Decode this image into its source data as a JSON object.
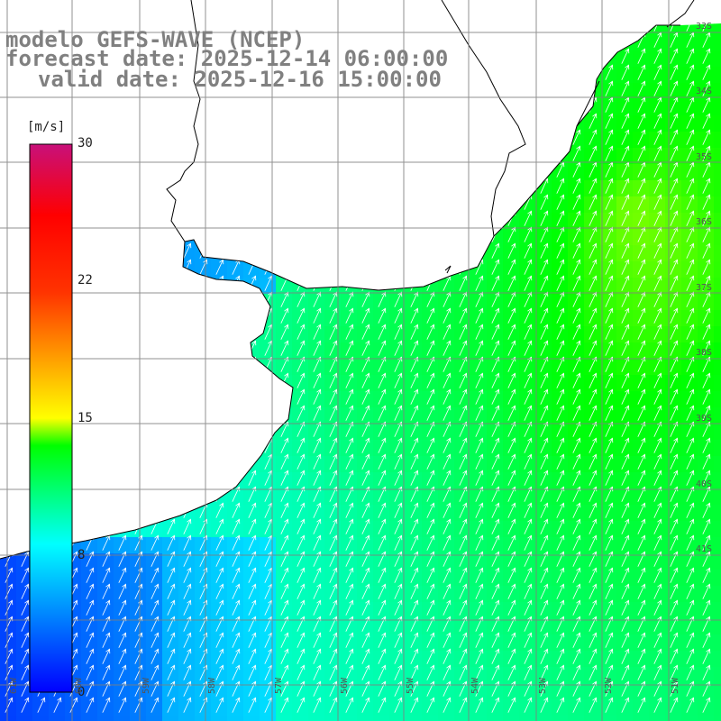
{
  "title": {
    "model": "modelo GEFS-WAVE (NCEP)",
    "forecast": "forecast date: 2025-12-14 06:00:00",
    "valid": "valid date: 2025-12-16 15:00:00"
  },
  "colorbar": {
    "unit": "[m/s]",
    "min": 0,
    "max": 30,
    "ticks": [
      "30",
      "22",
      "15",
      "8",
      "0"
    ],
    "stops": [
      "#0000ff",
      "#00ffff",
      "#00ff00",
      "#ffff00",
      "#ff0000",
      "#c8107a"
    ]
  },
  "axis_labels": {
    "lon": [
      "61W",
      "60W",
      "59W",
      "58W",
      "57W",
      "56W",
      "55W",
      "54W",
      "53W",
      "52W",
      "51W"
    ],
    "lat": [
      "33S",
      "34S",
      "35S",
      "36S",
      "37S",
      "38S",
      "39S",
      "40S",
      "41S"
    ]
  },
  "colors": {
    "land": "#ffffff",
    "coast": "#000000",
    "grid": "#7f7f7f"
  }
}
